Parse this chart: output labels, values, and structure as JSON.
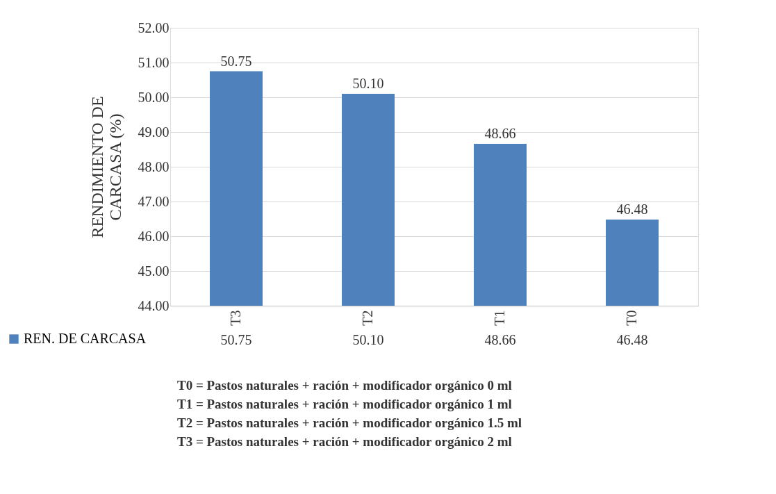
{
  "chart_data": {
    "type": "bar",
    "ylabel": "RENDIMIENTO DE CARCASA (%)",
    "categories": [
      "T3",
      "T2",
      "T1",
      "T0"
    ],
    "series": [
      {
        "name": "REN. DE CARCASA",
        "color": "#4f81bd",
        "values": [
          50.75,
          50.1,
          48.66,
          46.48
        ],
        "value_labels": [
          "50.75",
          "50.10",
          "48.66",
          "46.48"
        ]
      }
    ],
    "ylim": [
      44,
      52
    ],
    "yticks": [
      {
        "value": 44,
        "label": "44.00"
      },
      {
        "value": 45,
        "label": "45.00"
      },
      {
        "value": 46,
        "label": "46.00"
      },
      {
        "value": 47,
        "label": "47.00"
      },
      {
        "value": 48,
        "label": "48.00"
      },
      {
        "value": 49,
        "label": "49.00"
      },
      {
        "value": 50,
        "label": "50.00"
      },
      {
        "value": 51,
        "label": "51.00"
      },
      {
        "value": 52,
        "label": "52.00"
      }
    ],
    "grid": "y",
    "legend": "bottom left",
    "annotations": [
      "T0 = Pastos naturales + ración + modificador orgánico 0 ml",
      "T1 = Pastos naturales + ración + modificador orgánico 1 ml",
      "T2 = Pastos naturales + ración + modificador orgánico 1.5 ml",
      "T3 = Pastos naturales + ración + modificador orgánico 2 ml"
    ]
  }
}
